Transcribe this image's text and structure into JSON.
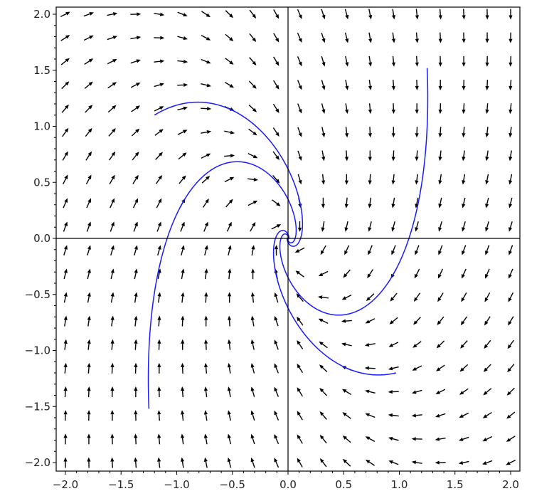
{
  "chart_data": {
    "type": "vector_field",
    "title": "",
    "xlabel": "",
    "ylabel": "",
    "xlim": [
      -2.08,
      2.08
    ],
    "ylim": [
      -2.08,
      2.08
    ],
    "grid": false,
    "axes_through_origin": true,
    "x_ticks": [
      "-2.0",
      "-1.5",
      "-1.0",
      "-0.5",
      "0.0",
      "0.5",
      "1.0",
      "1.5",
      "2.0"
    ],
    "y_ticks": [
      "-2.0",
      "-1.5",
      "-1.0",
      "-0.5",
      "0.0",
      "0.5",
      "1.0",
      "1.5",
      "2.0"
    ],
    "tick_values": [
      -2.0,
      -1.5,
      -1.0,
      -0.5,
      0.0,
      0.5,
      1.0,
      1.5,
      2.0
    ],
    "minor_tick_step": 0.1,
    "field": {
      "dx_dt": {
        "x": -1,
        "y": 1
      },
      "dy_dt": {
        "x": -3,
        "y": -2
      },
      "grid_range": [
        -2,
        2
      ],
      "grid_count": 20,
      "normalized": true,
      "arrow_color": "#000000"
    },
    "trajectories": {
      "color": "#1a1aff",
      "starts": [
        [
          -1.2,
          1.1
        ],
        [
          1.25,
          1.52
        ],
        [
          0.97,
          -1.2
        ],
        [
          -1.25,
          -1.52
        ]
      ]
    }
  }
}
